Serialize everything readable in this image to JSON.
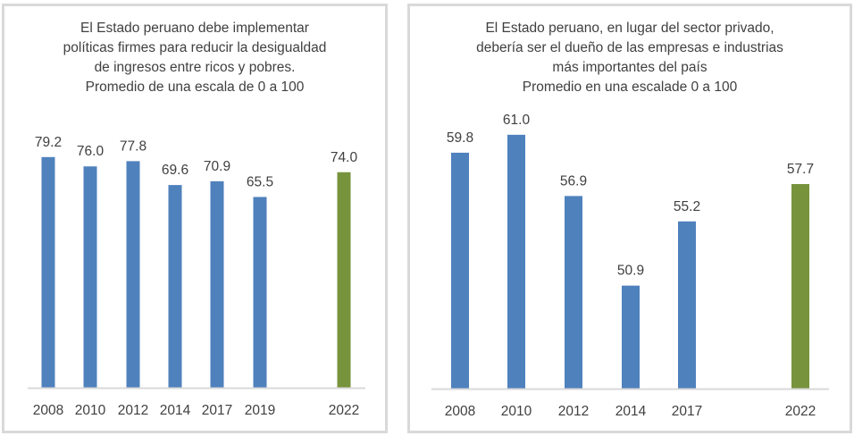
{
  "chart_data": [
    {
      "type": "bar",
      "title_lines": [
        "El Estado peruano debe implementar",
        "políticas firmes para reducir la desigualdad",
        "de ingresos entre ricos y pobres.",
        "Promedio de una escala de 0 a 100"
      ],
      "categories": [
        "2008",
        "2010",
        "2012",
        "2014",
        "2017",
        "2019",
        "2022"
      ],
      "values": [
        79.2,
        76.0,
        77.8,
        69.6,
        70.9,
        65.5,
        74.0
      ],
      "data_labels": [
        "79.2",
        "76.0",
        "77.8",
        "69.6",
        "70.9",
        "65.5",
        "74.0"
      ],
      "bar_colors": [
        "#4f81bd",
        "#4f81bd",
        "#4f81bd",
        "#4f81bd",
        "#4f81bd",
        "#4f81bd",
        "#77933c"
      ],
      "xlabel": "",
      "ylabel": "",
      "ylim": [
        0,
        100
      ],
      "grid": false,
      "legend": "none"
    },
    {
      "type": "bar",
      "title_lines": [
        "El Estado peruano, en lugar del sector privado,",
        "debería ser el dueño de las empresas e industrias",
        "más importantes del país",
        "Promedio en una escalade 0 a 100"
      ],
      "categories": [
        "2008",
        "2010",
        "2012",
        "2014",
        "2017",
        "2022"
      ],
      "values": [
        59.8,
        61.0,
        56.9,
        50.9,
        55.2,
        57.7
      ],
      "data_labels": [
        "59.8",
        "61.0",
        "56.9",
        "50.9",
        "55.2",
        "57.7"
      ],
      "bar_colors": [
        "#4f81bd",
        "#4f81bd",
        "#4f81bd",
        "#4f81bd",
        "#4f81bd",
        "#77933c"
      ],
      "xlabel": "",
      "ylabel": "",
      "ylim": [
        44,
        65
      ],
      "grid": false,
      "legend": "none"
    }
  ]
}
